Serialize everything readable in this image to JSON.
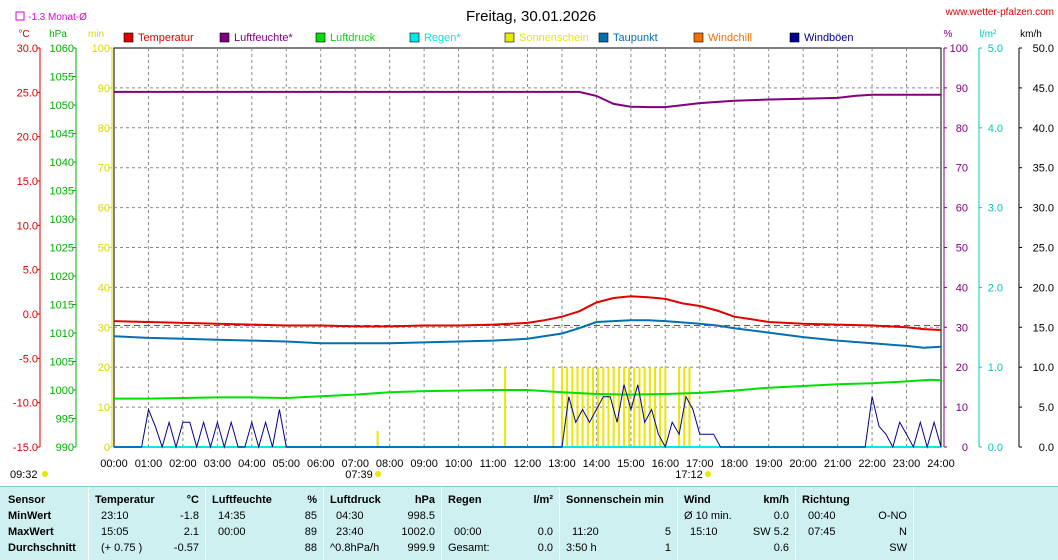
{
  "header": {
    "title": "Freitag, 30.01.2026",
    "site": "www.wetter-pfalzen.com",
    "monthly_mean": "-1.3 Monat-Ø"
  },
  "units": {
    "temp": "°C",
    "pressure": "hPa",
    "sun": "min",
    "humidity": "%",
    "rain": "l/m²",
    "wind": "km/h"
  },
  "legend": [
    {
      "label": "Temperatur",
      "color": "#e00000"
    },
    {
      "label": "Luftfeuchte*",
      "color": "#800080"
    },
    {
      "label": "Luftdruck",
      "color": "#00e000"
    },
    {
      "label": "Regen*",
      "color": "#00e8e8"
    },
    {
      "label": "Sonnenschein",
      "color": "#e8e800"
    },
    {
      "label": "Taupunkt",
      "color": "#0070b0"
    },
    {
      "label": "Windchill",
      "color": "#f07000"
    },
    {
      "label": "Windböen",
      "color": "#000090"
    }
  ],
  "sunrise": "07:39",
  "sunset": "17:12",
  "time_now": "09:32",
  "chart_data": {
    "type": "line",
    "title": "Freitag, 30.01.2026",
    "x_ticks": [
      "00:00",
      "01:00",
      "02:00",
      "03:00",
      "04:00",
      "05:00",
      "06:00",
      "07:00",
      "08:00",
      "09:00",
      "10:00",
      "11:00",
      "12:00",
      "13:00",
      "14:00",
      "15:00",
      "16:00",
      "17:00",
      "18:00",
      "19:00",
      "20:00",
      "21:00",
      "22:00",
      "23:00",
      "24:00"
    ],
    "axes": {
      "temp": {
        "label": "°C",
        "min": -15,
        "max": 30,
        "ticks": [
          "30.0",
          "25.0",
          "20.0",
          "15.0",
          "10.0",
          "5.0",
          "0.0",
          "-5.0",
          "-10.0",
          "-15.0"
        ],
        "color": "#e00000"
      },
      "pressure": {
        "label": "hPa",
        "min": 990,
        "max": 1060,
        "ticks": [
          "1060",
          "1055",
          "1050",
          "1045",
          "1040",
          "1035",
          "1030",
          "1025",
          "1020",
          "1015",
          "1010",
          "1005",
          "1000",
          "995",
          "990"
        ],
        "color": "#00b000"
      },
      "sun": {
        "label": "min",
        "min": 0,
        "max": 100,
        "ticks": [
          "100",
          "90",
          "80",
          "70",
          "60",
          "50",
          "40",
          "30",
          "20",
          "10",
          "0"
        ],
        "color": "#d8d800"
      },
      "humidity": {
        "label": "%",
        "min": 0,
        "max": 100,
        "ticks": [
          "100",
          "90",
          "80",
          "70",
          "60",
          "50",
          "40",
          "30",
          "20",
          "10",
          "0"
        ],
        "color": "#800080"
      },
      "rain": {
        "label": "l/m²",
        "min": 0,
        "max": 5,
        "ticks": [
          "5.0",
          "4.0",
          "3.0",
          "2.0",
          "1.0",
          "0.0"
        ],
        "color": "#00c8c8"
      },
      "wind": {
        "label": "km/h",
        "min": 0,
        "max": 50,
        "ticks": [
          "50.0",
          "45.0",
          "40.0",
          "35.0",
          "30.0",
          "25.0",
          "20.0",
          "15.0",
          "10.0",
          "5.0",
          "0.0"
        ],
        "color": "#000000"
      }
    },
    "monthly_mean_temp": -1.3,
    "series": [
      {
        "name": "Temperatur",
        "color": "#e00000",
        "x": [
          0,
          1,
          2,
          3,
          4,
          5,
          6,
          7,
          8,
          9,
          10,
          11,
          12,
          12.5,
          13,
          13.5,
          14,
          14.5,
          15,
          15.5,
          16,
          16.5,
          17,
          17.5,
          18,
          18.5,
          19,
          20,
          21,
          22,
          23,
          23.5,
          24
        ],
        "y": [
          -0.8,
          -0.9,
          -1.0,
          -1.1,
          -1.2,
          -1.3,
          -1.3,
          -1.4,
          -1.4,
          -1.3,
          -1.3,
          -1.2,
          -1.0,
          -0.7,
          -0.3,
          0.3,
          1.3,
          1.8,
          2.0,
          1.9,
          1.7,
          1.2,
          0.9,
          0.4,
          -0.3,
          -0.6,
          -0.9,
          -1.1,
          -1.2,
          -1.3,
          -1.5,
          -1.7,
          -1.8
        ]
      },
      {
        "name": "Luftfeuchte*",
        "color": "#800080",
        "x": [
          0,
          2,
          4,
          6,
          8,
          10,
          12,
          13,
          13.5,
          14,
          14.5,
          15,
          15.5,
          16,
          16.5,
          17,
          18,
          19,
          20,
          21,
          21.5,
          22,
          23,
          24
        ],
        "y": [
          89,
          89,
          89,
          89,
          89,
          89,
          89,
          89,
          89,
          88,
          86,
          85.3,
          85.2,
          85.2,
          85.7,
          86.2,
          86.8,
          87.1,
          87.3,
          87.5,
          88,
          88.3,
          88.3,
          88.3
        ]
      },
      {
        "name": "Luftdruck",
        "color": "#00e000",
        "x": [
          0,
          1,
          2,
          3,
          4,
          5,
          6,
          7,
          8,
          9,
          10,
          11,
          12,
          13,
          14,
          15,
          16,
          17,
          18,
          19,
          20,
          21,
          22,
          23,
          23.7,
          24
        ],
        "y": [
          998.5,
          998.5,
          998.6,
          998.7,
          998.7,
          998.6,
          998.9,
          999.2,
          999.6,
          999.8,
          999.9,
          1000.0,
          1000.0,
          999.6,
          999.3,
          999.2,
          999.3,
          999.5,
          999.9,
          1000.4,
          1000.7,
          1001.0,
          1001.2,
          1001.5,
          1001.8,
          1001.7
        ]
      },
      {
        "name": "Taupunkt",
        "color": "#0070b0",
        "x": [
          0,
          1,
          2,
          3,
          4,
          5,
          6,
          7,
          8,
          9,
          10,
          11,
          12,
          13,
          13.5,
          14,
          14.5,
          15,
          15.5,
          16,
          17,
          17.5,
          18,
          19,
          20,
          21,
          22,
          23,
          23.5,
          24
        ],
        "y": [
          -2.5,
          -2.7,
          -2.8,
          -2.9,
          -3.0,
          -3.1,
          -3.3,
          -3.3,
          -3.3,
          -3.2,
          -3.1,
          -3.0,
          -2.8,
          -2.2,
          -1.6,
          -0.9,
          -0.8,
          -0.7,
          -0.7,
          -0.8,
          -1.1,
          -1.3,
          -1.6,
          -2.1,
          -2.6,
          -3.0,
          -3.3,
          -3.6,
          -3.8,
          -3.7
        ]
      },
      {
        "name": "Regen*",
        "color": "#00e8e8",
        "x": [
          0,
          24
        ],
        "y": [
          0,
          0
        ]
      },
      {
        "name": "Windböen",
        "color": "#000090",
        "x": [
          0,
          0.8,
          1.0,
          1.2,
          1.4,
          1.6,
          1.8,
          2.0,
          2.2,
          2.4,
          2.6,
          2.8,
          3.0,
          3.2,
          3.4,
          3.6,
          3.8,
          4.0,
          4.2,
          4.4,
          4.6,
          4.8,
          5.0,
          13.0,
          13.2,
          13.4,
          13.6,
          13.8,
          14.0,
          14.2,
          14.4,
          14.6,
          14.8,
          15.0,
          15.2,
          15.4,
          15.6,
          15.8,
          16.0,
          16.2,
          16.4,
          16.6,
          16.8,
          17.0,
          17.2,
          17.4,
          17.6,
          17.8,
          21.8,
          22.0,
          22.2,
          22.4,
          22.6,
          22.8,
          23.0,
          23.2,
          23.4,
          23.6,
          23.8,
          24.0
        ],
        "y": [
          0,
          0,
          4.7,
          2.6,
          0,
          3.1,
          0,
          3.1,
          3.1,
          0,
          3.1,
          0,
          3.1,
          0,
          3.1,
          0,
          0,
          3.1,
          0,
          3.1,
          0,
          4.7,
          0,
          0,
          6.3,
          3.1,
          4.7,
          3.1,
          4.7,
          6.3,
          6.3,
          3.1,
          7.8,
          4.7,
          7.8,
          3.1,
          4.7,
          1.6,
          0,
          3.1,
          1.6,
          6.3,
          4.7,
          1.6,
          1.6,
          1.6,
          0,
          0,
          0,
          6.3,
          2.6,
          1.6,
          0,
          3.1,
          1.6,
          0,
          3.1,
          0,
          3.1,
          0
        ]
      }
    ],
    "sunshine_bars_min": [
      {
        "x": 7.65,
        "v": 1
      },
      {
        "x": 11.35,
        "v": 5
      },
      {
        "x": 12.75,
        "v": 5
      },
      {
        "x": 13.0,
        "v": 5
      },
      {
        "x": 13.15,
        "v": 5
      },
      {
        "x": 13.3,
        "v": 5
      },
      {
        "x": 13.45,
        "v": 5
      },
      {
        "x": 13.6,
        "v": 5
      },
      {
        "x": 13.75,
        "v": 5
      },
      {
        "x": 13.9,
        "v": 5
      },
      {
        "x": 14.05,
        "v": 5
      },
      {
        "x": 14.2,
        "v": 5
      },
      {
        "x": 14.35,
        "v": 5
      },
      {
        "x": 14.5,
        "v": 5
      },
      {
        "x": 14.65,
        "v": 5
      },
      {
        "x": 14.8,
        "v": 5
      },
      {
        "x": 14.95,
        "v": 5
      },
      {
        "x": 15.1,
        "v": 5
      },
      {
        "x": 15.25,
        "v": 5
      },
      {
        "x": 15.4,
        "v": 5
      },
      {
        "x": 15.55,
        "v": 5
      },
      {
        "x": 15.7,
        "v": 5
      },
      {
        "x": 15.85,
        "v": 5
      },
      {
        "x": 16.0,
        "v": 5
      },
      {
        "x": 16.4,
        "v": 5
      },
      {
        "x": 16.55,
        "v": 5
      },
      {
        "x": 16.7,
        "v": 5
      }
    ]
  },
  "stats": {
    "rows": [
      "Sensor",
      "MinWert",
      "MaxWert",
      "Durchschnitt"
    ],
    "temperature": {
      "head": "Temperatur",
      "unit": "°C",
      "min_time": "23:10",
      "min_val": "-1.8",
      "max_time": "15:05",
      "max_val": "2.1",
      "avg_note": "(+ 0.75 )",
      "avg_val": "-0.57"
    },
    "humidity": {
      "head": "Luftfeuchte",
      "unit": "%",
      "min_time": "14:35",
      "min_val": "85",
      "max_time": "00:00",
      "max_val": "89",
      "avg_val": "88"
    },
    "pressure": {
      "head": "Luftdruck",
      "unit": "hPa",
      "min_time": "04:30",
      "min_val": "998.5",
      "max_time": "23:40",
      "max_val": "1002.0",
      "avg_note": "^0.8hPa/h",
      "avg_val": "999.9"
    },
    "rain": {
      "head": "Regen",
      "unit": "l/m²",
      "max_time": "00:00",
      "max_val": "0.0",
      "avg_note": "Gesamt:",
      "avg_val": "0.0"
    },
    "sun": {
      "head": "Sonnenschein min",
      "max_time": "11:20",
      "max_val": "5",
      "avg_note": "3:50 h",
      "avg_val": "1"
    },
    "wind": {
      "head": "Wind",
      "unit": "km/h",
      "min_time": "Ø 10 min.",
      "min_val": "0.0",
      "max_time": "15:10",
      "max_val": "SW 5.2",
      "avg_val": "0.6"
    },
    "direction": {
      "head": "Richtung",
      "min_time": "00:40",
      "min_val": "O-NO",
      "max_time": "07:45",
      "max_val": "N",
      "avg_val": "SW"
    }
  }
}
